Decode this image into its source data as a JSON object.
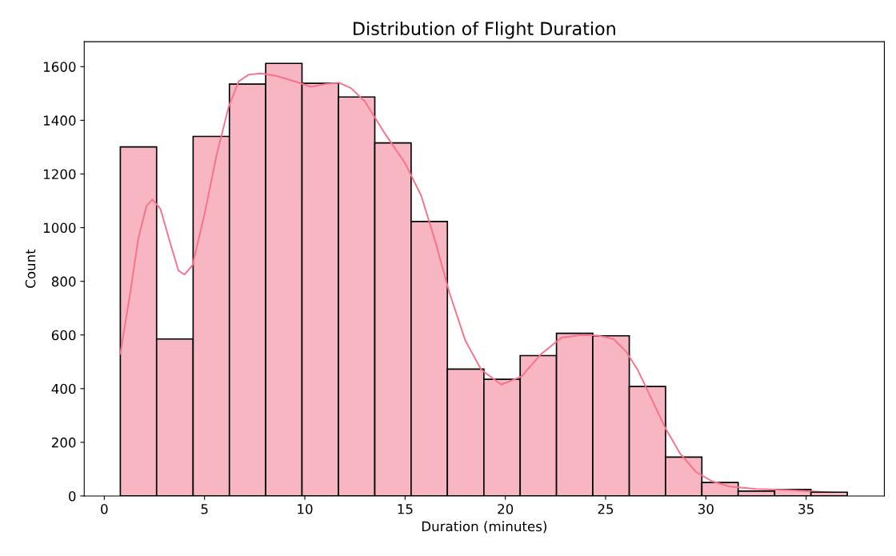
{
  "chart_data": {
    "type": "histogram",
    "title": "Distribution of Flight Duration",
    "xlabel": "Duration (minutes)",
    "ylabel": "Count",
    "bins": [
      0.8,
      2.61,
      4.43,
      6.24,
      8.05,
      9.86,
      11.68,
      13.49,
      15.3,
      17.11,
      18.93,
      20.74,
      22.55,
      24.36,
      26.18,
      27.99,
      29.8,
      31.61,
      33.43,
      35.24,
      37.05
    ],
    "values": [
      1301,
      585,
      1340,
      1535,
      1612,
      1538,
      1487,
      1316,
      1023,
      473,
      435,
      523,
      606,
      597,
      408,
      145,
      50,
      18,
      24,
      14
    ],
    "color": "#f8b5c2",
    "series": [
      {
        "type": "line",
        "color": "#f7728a",
        "x": [
          0.8,
          1.3,
          1.7,
          2.1,
          2.4,
          2.8,
          3.3,
          3.7,
          4.0,
          4.4,
          5.0,
          5.6,
          6.2,
          6.7,
          7.2,
          7.8,
          8.6,
          9.5,
          10.3,
          11.0,
          11.7,
          12.3,
          13.0,
          14.0,
          15.0,
          15.8,
          16.5,
          17.2,
          18.0,
          18.8,
          19.8,
          20.8,
          21.8,
          22.8,
          23.8,
          24.6,
          25.4,
          26.0,
          26.6,
          27.3,
          28.0,
          28.7,
          29.5,
          30.3,
          31.2,
          32.5,
          34.0,
          35.5,
          37.05
        ],
        "values": [
          530,
          760,
          960,
          1080,
          1105,
          1070,
          940,
          840,
          825,
          860,
          1050,
          1270,
          1450,
          1545,
          1570,
          1575,
          1565,
          1545,
          1525,
          1535,
          1540,
          1520,
          1470,
          1350,
          1240,
          1120,
          950,
          760,
          580,
          470,
          415,
          445,
          530,
          590,
          600,
          598,
          585,
          540,
          470,
          360,
          250,
          160,
          90,
          55,
          35,
          26,
          22,
          16,
          10
        ]
      }
    ],
    "xlim": [
      -1.0,
      38.9
    ],
    "xticks": [
      0,
      5,
      10,
      15,
      20,
      25,
      30,
      35
    ],
    "ylim": [
      0,
      1693
    ],
    "yticks": [
      0,
      200,
      400,
      600,
      800,
      1000,
      1200,
      1400,
      1600
    ],
    "grid": false
  }
}
